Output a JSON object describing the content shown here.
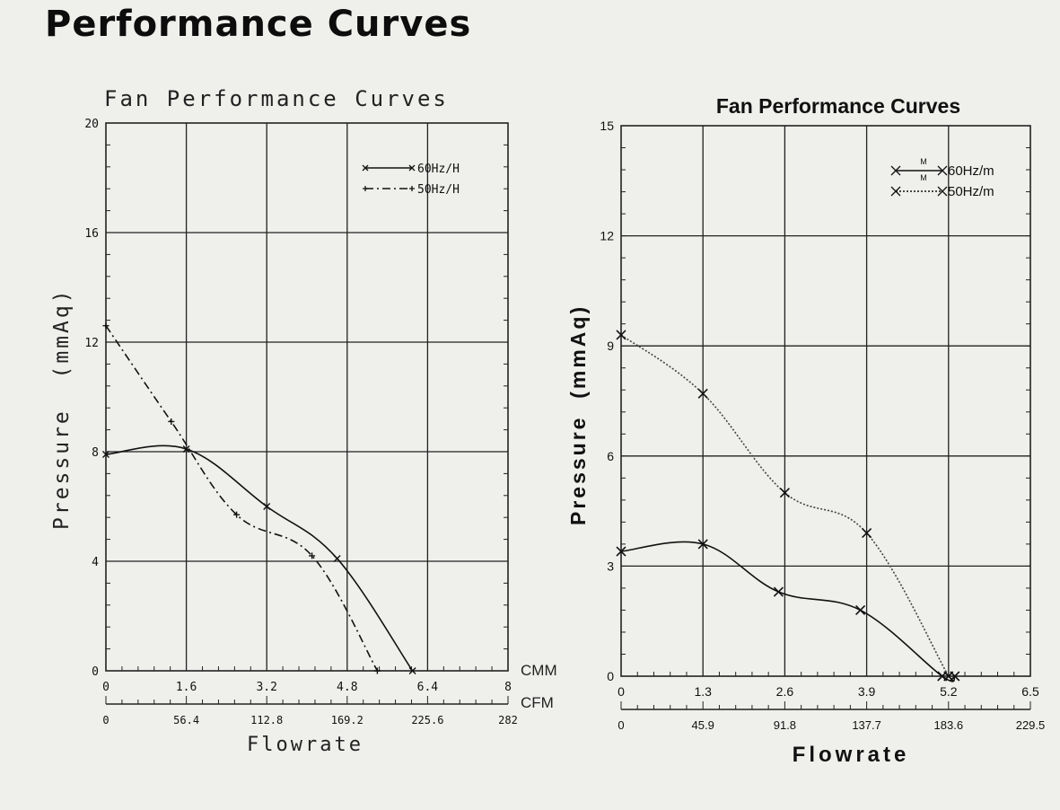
{
  "page_title": "Performance Curves",
  "chart_data": [
    {
      "type": "line",
      "title": "Fan Performance Curves",
      "ylabel": "Pressure  (mmAq)",
      "xlabel": "Flowrate",
      "x_axis_unit": "CMM",
      "x_axis_secondary_unit": "CFM",
      "xlim": [
        0,
        8
      ],
      "ylim": [
        0,
        20
      ],
      "x_ticks": [
        "0",
        "1.6",
        "3.2",
        "4.8",
        "6.4",
        "8"
      ],
      "x_secondary_ticks": [
        "0",
        "56.4",
        "112.8",
        "169.2",
        "225.6",
        "282"
      ],
      "y_ticks": [
        "0",
        "4",
        "8",
        "12",
        "16",
        "20"
      ],
      "grid": true,
      "legend_position": "top-right",
      "series": [
        {
          "name": "60Hz/H",
          "line": "solid",
          "x": [
            0,
            1.6,
            3.2,
            4.6,
            6.1
          ],
          "y": [
            7.9,
            8.1,
            6.0,
            4.1,
            0
          ]
        },
        {
          "name": "50Hz/H",
          "line": "dash-dot",
          "x": [
            0,
            1.3,
            2.6,
            4.1,
            5.4
          ],
          "y": [
            12.6,
            9.1,
            5.7,
            4.2,
            0
          ]
        }
      ],
      "colors": {
        "line": "#111111",
        "grid": "#222222"
      }
    },
    {
      "type": "line",
      "title": "Fan Performance Curves",
      "ylabel": "Pressure  (mmAq)",
      "xlabel": "Flowrate",
      "xlim": [
        0,
        6.5
      ],
      "ylim": [
        0,
        15
      ],
      "x_ticks": [
        "0",
        "1.3",
        "2.6",
        "3.9",
        "5.2",
        "6.5"
      ],
      "x_secondary_ticks": [
        "0",
        "45.9",
        "91.8",
        "137.7",
        "183.6",
        "229.5"
      ],
      "y_ticks": [
        "0",
        "3",
        "6",
        "9",
        "12",
        "15"
      ],
      "grid": true,
      "legend_position": "top-right",
      "legend_marker_text": {
        "top": "M",
        "bottom": "M"
      },
      "series": [
        {
          "name": "60Hz/m",
          "line": "solid",
          "x": [
            0,
            1.3,
            2.5,
            3.8,
            5.1,
            5.3
          ],
          "y": [
            3.4,
            3.6,
            2.3,
            1.8,
            0,
            0
          ]
        },
        {
          "name": "50Hz/m",
          "line": "dotted",
          "x": [
            0,
            1.3,
            2.6,
            3.9,
            5.2
          ],
          "y": [
            9.3,
            7.7,
            5.0,
            3.9,
            0
          ]
        }
      ],
      "colors": {
        "line": "#111111",
        "grid": "#222222",
        "dotted": "#444444"
      }
    }
  ]
}
